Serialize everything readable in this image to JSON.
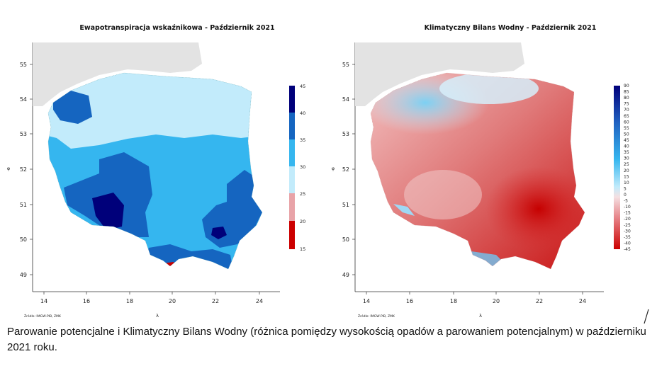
{
  "maps": [
    {
      "title": "Ewapotranspiracja wskaźnikowa - Październik 2021",
      "y_ticks": [
        "55",
        "54",
        "53",
        "52",
        "51",
        "50",
        "49"
      ],
      "x_ticks": [
        "14",
        "16",
        "18",
        "20",
        "22",
        "24"
      ],
      "y_label": "φ",
      "x_label": "λ",
      "credit": "Źródło: IMGW-PIB, ZMK",
      "legend_ticks": [
        "45",
        "40",
        "35",
        "30",
        "25",
        "20",
        "15"
      ],
      "legend_colors": [
        "#00007a",
        "#1565c0",
        "#35b6ef",
        "#c2ebfb",
        "#e8a3a8",
        "#cc0000"
      ]
    },
    {
      "title": "Klimatyczny Bilans Wodny - Październik 2021",
      "y_ticks": [
        "55",
        "54",
        "53",
        "52",
        "51",
        "50",
        "49"
      ],
      "x_ticks": [
        "14",
        "16",
        "18",
        "20",
        "22",
        "24"
      ],
      "y_label": "φ",
      "x_label": "λ",
      "credit": "Źródło: IMGW-PIB, ZMK",
      "legend_ticks": [
        "90",
        "85",
        "80",
        "75",
        "70",
        "65",
        "60",
        "55",
        "50",
        "45",
        "40",
        "35",
        "30",
        "25",
        "20",
        "15",
        "10",
        "5",
        "0",
        "-5",
        "-10",
        "-15",
        "-20",
        "-25",
        "-30",
        "-35",
        "-40",
        "-45"
      ]
    }
  ],
  "caption": "Parowanie potencjalne i Klimatyczny Bilans Wodny (różnica pomiędzy wysokością opadów a parowaniem potencjalnym) w październiku 2021 roku."
}
